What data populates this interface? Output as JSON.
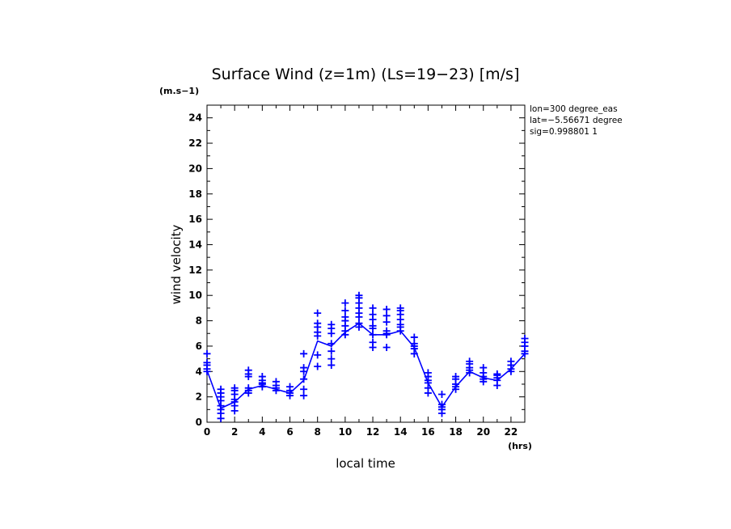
{
  "chart_data": {
    "type": "scatter",
    "title": "Surface Wind (z=1m) (Ls=19−23) [m/s]",
    "ylabel": "wind velocity",
    "yunit": "(m.s−1)",
    "xlabel": "local time",
    "xunit": "(hrs)",
    "xlim": [
      0,
      23
    ],
    "ylim": [
      0,
      25
    ],
    "xticks": [
      0,
      2,
      4,
      6,
      8,
      10,
      12,
      14,
      16,
      18,
      20,
      22
    ],
    "yticks": [
      0,
      2,
      4,
      6,
      8,
      10,
      12,
      14,
      16,
      18,
      20,
      22,
      24
    ],
    "info_lines": [
      "lon=300 degree_eas",
      "lat=−5.56671 degree",
      "sig=0.998801 1"
    ],
    "color": "#0000ff",
    "grid": false,
    "mean_line": {
      "x": [
        0,
        1,
        2,
        3,
        4,
        5,
        6,
        7,
        8,
        9,
        10,
        11,
        12,
        13,
        14,
        15,
        16,
        17,
        18,
        19,
        20,
        21,
        22,
        23
      ],
      "y": [
        4.1,
        1.1,
        1.6,
        2.6,
        2.9,
        2.6,
        2.3,
        3.3,
        6.4,
        6.0,
        7.1,
        7.8,
        6.9,
        6.9,
        7.2,
        5.9,
        3.1,
        1.2,
        2.8,
        4.0,
        3.5,
        3.3,
        4.2,
        5.4
      ]
    },
    "points": [
      {
        "x": 0,
        "y": [
          4.0,
          4.2,
          4.5,
          4.7,
          5.4
        ]
      },
      {
        "x": 1,
        "y": [
          0.3,
          0.7,
          1.0,
          1.3,
          1.7,
          2.0,
          2.3,
          2.6
        ]
      },
      {
        "x": 2,
        "y": [
          0.9,
          1.3,
          1.6,
          1.8,
          2.2,
          2.5,
          2.7
        ]
      },
      {
        "x": 3,
        "y": [
          2.3,
          2.5,
          2.7,
          3.6,
          3.8,
          4.1
        ]
      },
      {
        "x": 4,
        "y": [
          2.8,
          3.0,
          3.1,
          3.3,
          3.6
        ]
      },
      {
        "x": 5,
        "y": [
          2.5,
          2.7,
          2.9,
          3.2
        ]
      },
      {
        "x": 6,
        "y": [
          2.1,
          2.3,
          2.5,
          2.8
        ]
      },
      {
        "x": 7,
        "y": [
          2.1,
          2.6,
          3.4,
          4.0,
          4.3,
          5.4
        ]
      },
      {
        "x": 8,
        "y": [
          4.4,
          5.3,
          6.8,
          7.1,
          7.5,
          7.8,
          8.6
        ]
      },
      {
        "x": 9,
        "y": [
          4.5,
          5.0,
          5.6,
          6.2,
          7.0,
          7.4,
          7.7
        ]
      },
      {
        "x": 10,
        "y": [
          6.9,
          7.2,
          7.6,
          8.0,
          8.3,
          8.8,
          9.4
        ]
      },
      {
        "x": 11,
        "y": [
          7.5,
          7.8,
          8.3,
          8.6,
          9.0,
          9.4,
          9.8,
          10.0
        ]
      },
      {
        "x": 12,
        "y": [
          5.9,
          6.3,
          6.9,
          7.4,
          7.6,
          8.1,
          8.5,
          9.0
        ]
      },
      {
        "x": 13,
        "y": [
          5.9,
          6.9,
          7.0,
          7.2,
          7.9,
          8.4,
          8.9
        ]
      },
      {
        "x": 14,
        "y": [
          7.2,
          7.5,
          7.7,
          8.1,
          8.5,
          8.8,
          9.0
        ]
      },
      {
        "x": 15,
        "y": [
          5.4,
          5.8,
          6.0,
          6.2,
          6.7
        ]
      },
      {
        "x": 16,
        "y": [
          2.3,
          2.7,
          3.1,
          3.3,
          3.6,
          3.9
        ]
      },
      {
        "x": 17,
        "y": [
          0.7,
          1.0,
          1.2,
          1.4,
          2.2
        ]
      },
      {
        "x": 18,
        "y": [
          2.6,
          2.8,
          3.0,
          3.4,
          3.6
        ]
      },
      {
        "x": 19,
        "y": [
          3.9,
          4.1,
          4.3,
          4.6,
          4.8
        ]
      },
      {
        "x": 20,
        "y": [
          3.2,
          3.4,
          3.6,
          3.9,
          4.3
        ]
      },
      {
        "x": 21,
        "y": [
          2.9,
          3.3,
          3.5,
          3.7,
          3.8
        ]
      },
      {
        "x": 22,
        "y": [
          4.0,
          4.2,
          4.5,
          4.8
        ]
      },
      {
        "x": 23,
        "y": [
          5.4,
          5.6,
          6.0,
          6.3,
          6.6
        ]
      }
    ]
  }
}
